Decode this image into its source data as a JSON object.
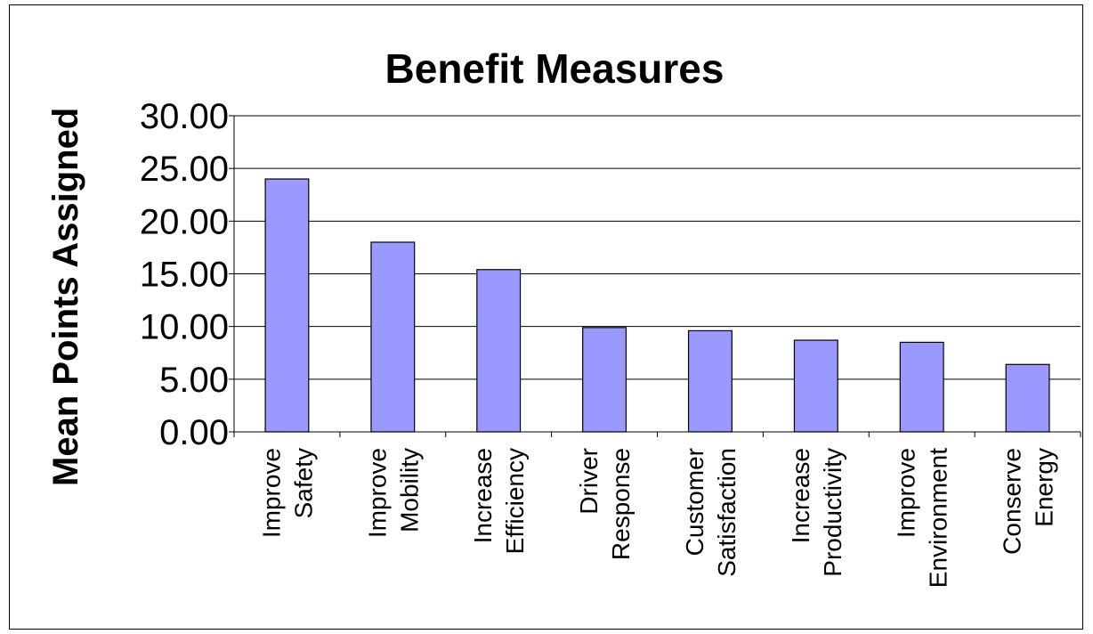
{
  "chart_data": {
    "type": "bar",
    "title": "Benefit Measures",
    "ylabel": "Mean Points Assigned",
    "xlabel": "",
    "ylim": [
      0,
      30
    ],
    "yticks": [
      "0.00",
      "5.00",
      "10.00",
      "15.00",
      "20.00",
      "25.00",
      "30.00"
    ],
    "grid": true,
    "legend": "none",
    "categories": [
      [
        "Improve",
        "Safety"
      ],
      [
        "Improve",
        "Mobility"
      ],
      [
        "Increase",
        "Efficiency"
      ],
      [
        "Driver",
        "Response"
      ],
      [
        "Customer",
        "Satisfaction"
      ],
      [
        "Increase",
        "Productivity"
      ],
      [
        "Improve",
        "Environment"
      ],
      [
        "Conserve",
        "Energy"
      ]
    ],
    "values": [
      24.0,
      18.0,
      15.4,
      9.9,
      9.6,
      8.7,
      8.5,
      6.4
    ],
    "bar_color": "#9999ff"
  }
}
